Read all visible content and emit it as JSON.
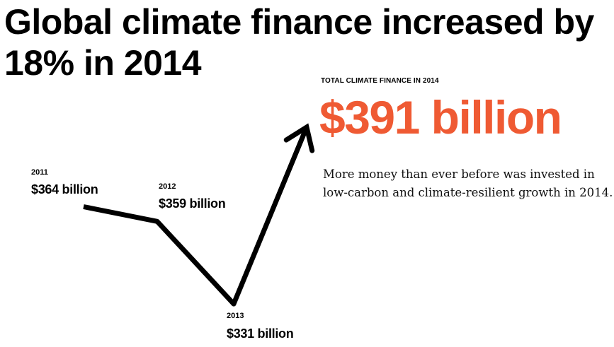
{
  "headline": "Global climate finance increased by 18% in 2014",
  "total": {
    "label": "TOTAL CLIMATE FINANCE IN 2014",
    "value": "$391 billion"
  },
  "description": "More money than ever before was invested in low-carbon and climate-resilient growth in 2014.",
  "colors": {
    "accent": "#ef5a33",
    "line": "#000000",
    "text": "#000000"
  },
  "chart_data": {
    "type": "line",
    "title": "",
    "x": [
      "2011",
      "2012",
      "2013",
      "2014"
    ],
    "values": [
      364,
      359,
      331,
      391
    ],
    "labels": [
      "$364 billion",
      "$359 billion",
      "$331 billion",
      "$391 billion"
    ],
    "unit": "$ billion",
    "last_point_arrow": true,
    "axes_visible": false,
    "grid": false
  }
}
